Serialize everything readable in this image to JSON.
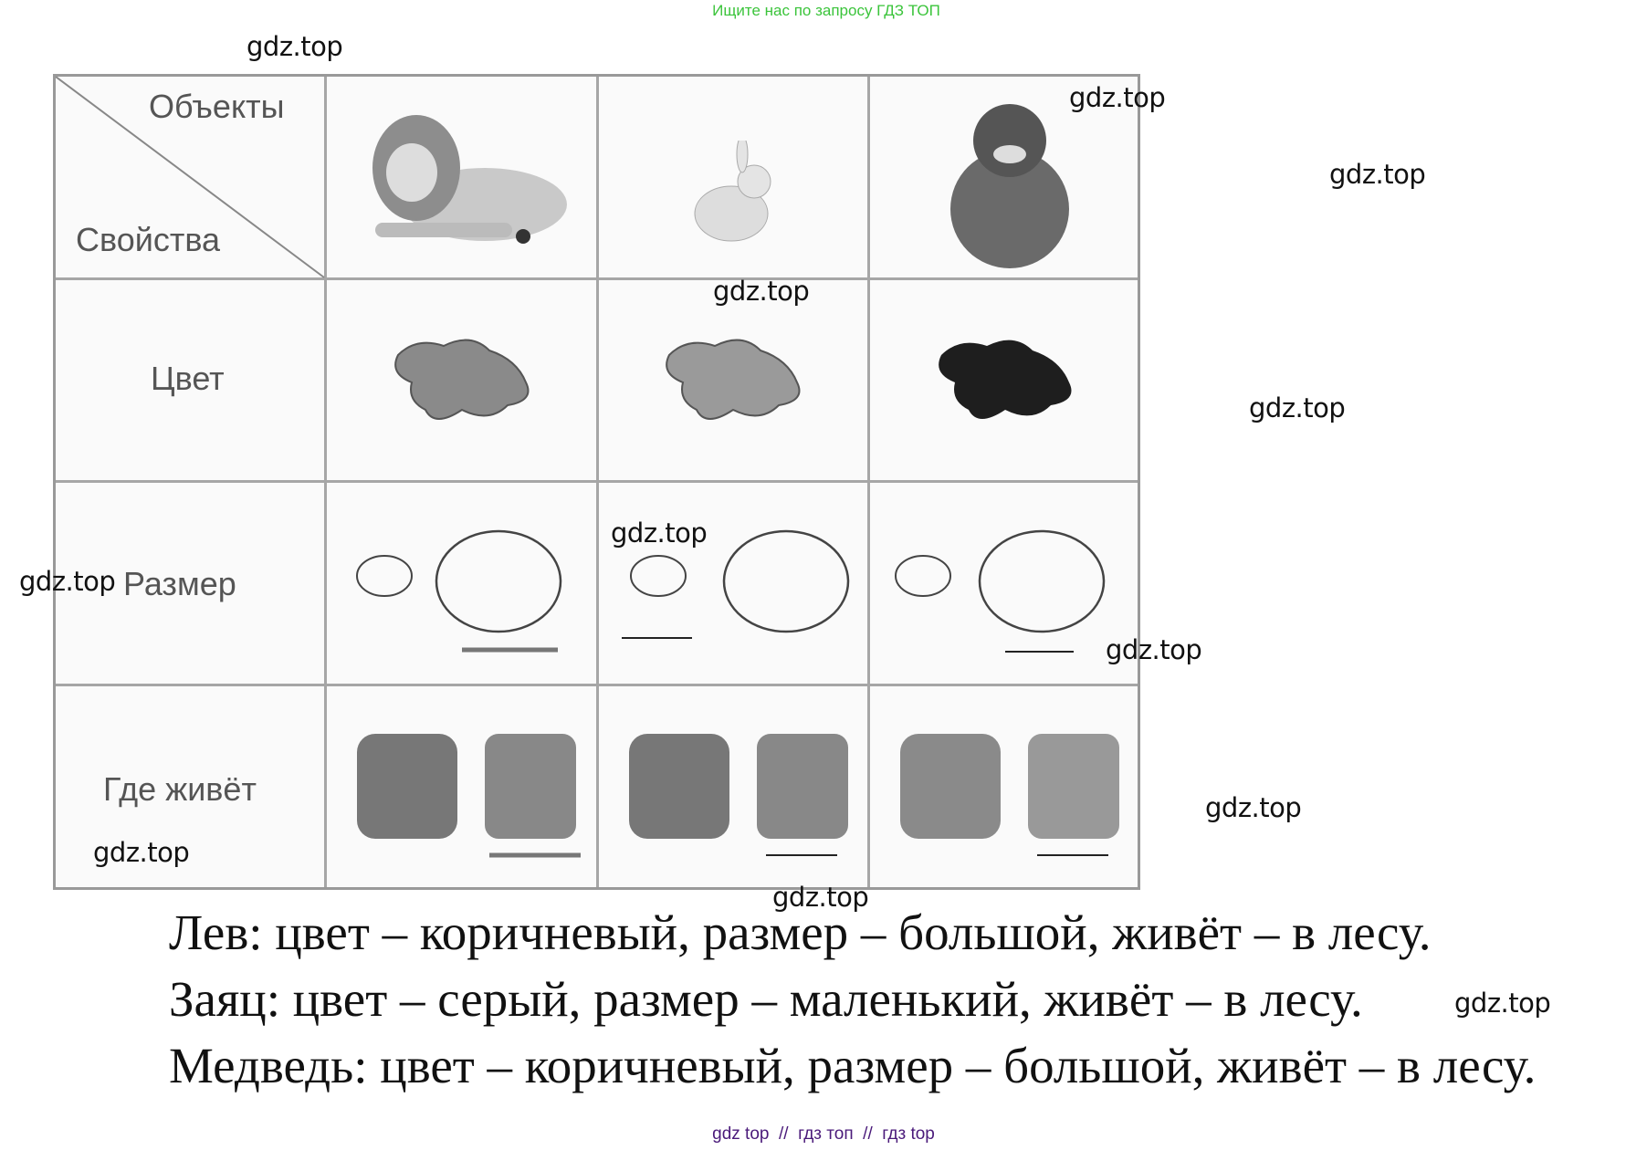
{
  "header_note": "Ищите нас по запросу ГДЗ ТОП",
  "watermark": "gdz.top",
  "table": {
    "corner_top": "Объекты",
    "corner_bottom": "Свойства",
    "rows": [
      "Цвет",
      "Размер",
      "Где живёт"
    ],
    "objects": [
      "lion",
      "hare",
      "bear"
    ],
    "colors": [
      "#8a8a8a",
      "#9a9a9a",
      "#1e1e1e"
    ]
  },
  "answers": [
    "Лев: цвет – коричневый, размер – большой, живёт – в лесу.",
    "Заяц: цвет – серый, размер – маленький, живёт – в лесу.",
    "Медведь: цвет – коричневый, размер – большой, живёт – в лесу."
  ],
  "footer": "gdz top  //  гдз топ  //  гдз top"
}
